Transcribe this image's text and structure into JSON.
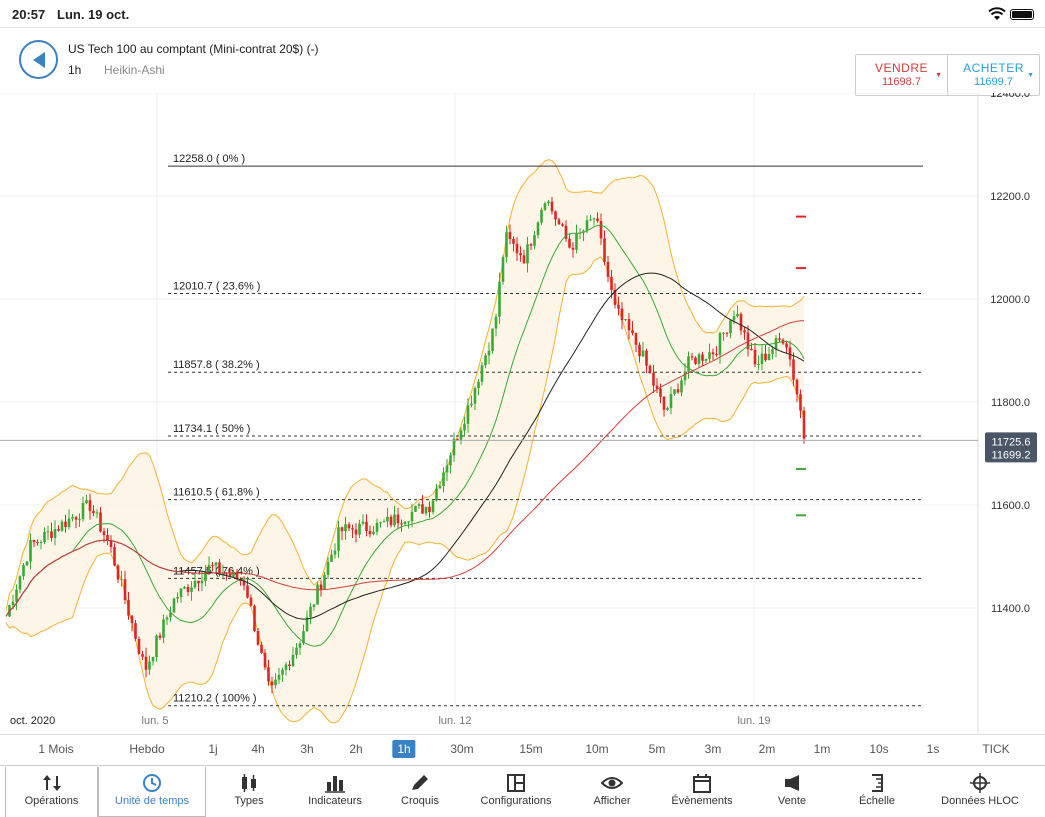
{
  "status": {
    "time": "20:57",
    "date": "Lun. 19 oct."
  },
  "header": {
    "instrument": "US Tech 100 au comptant (Mini-contrat 20$) (-)",
    "timeframe": "1h",
    "chart_type": "Heikin-Ashi",
    "sell": {
      "label": "VENDRE",
      "price": "11698.7"
    },
    "buy": {
      "label": "ACHETER",
      "price": "11699.7"
    }
  },
  "colors": {
    "accent": "#3a82c4",
    "sell": "#d23d3d",
    "buy": "#2a9fd8",
    "candle_up": "#3aaa35",
    "candle_down": "#e02525",
    "bollinger": "#f2b330",
    "ma_fast": "#3aaa35",
    "ma_slow": "#d23d3d",
    "ma_mid": "#222222"
  },
  "chart_data": {
    "type": "candlestick",
    "ylim": [
      11200,
      12400
    ],
    "y_ticks": [
      "12400.0",
      "12200.0",
      "12000.0",
      "11800.0",
      "11600.0",
      "11400.0"
    ],
    "x_labels": [
      "oct. 2020",
      "lun. 5",
      "lun. 12",
      "lun. 19"
    ],
    "fib_levels": [
      {
        "label": "12258.0 ( 0% )",
        "value": 12258.0
      },
      {
        "label": "12010.7 ( 23.6% )",
        "value": 12010.7
      },
      {
        "label": "11857.8 ( 38.2% )",
        "value": 11857.8
      },
      {
        "label": "11734.1 ( 50% )",
        "value": 11734.1
      },
      {
        "label": "11610.5 ( 61.8% )",
        "value": 11610.5
      },
      {
        "label": "11457.5 ( 76.4% )",
        "value": 11457.5
      },
      {
        "label": "11210.2 ( 100% )",
        "value": 11210.2
      }
    ],
    "price_tag": {
      "upper": "11725.6",
      "lower": "11699.2",
      "value": 11725.6
    },
    "key_points": [
      [
        0,
        11350
      ],
      [
        30,
        11520
      ],
      [
        90,
        11600
      ],
      [
        110,
        11520
      ],
      [
        145,
        11280
      ],
      [
        175,
        11420
      ],
      [
        210,
        11480
      ],
      [
        245,
        11450
      ],
      [
        270,
        11230
      ],
      [
        300,
        11340
      ],
      [
        340,
        11550
      ],
      [
        380,
        11560
      ],
      [
        430,
        11600
      ],
      [
        470,
        11800
      ],
      [
        495,
        11950
      ],
      [
        505,
        12120
      ],
      [
        525,
        12080
      ],
      [
        545,
        12200
      ],
      [
        570,
        12100
      ],
      [
        595,
        12160
      ],
      [
        615,
        11980
      ],
      [
        640,
        11900
      ],
      [
        665,
        11780
      ],
      [
        690,
        11880
      ],
      [
        715,
        11900
      ],
      [
        735,
        11980
      ],
      [
        755,
        11870
      ],
      [
        785,
        11930
      ],
      [
        800,
        11790
      ],
      [
        805,
        11720
      ]
    ]
  },
  "timeframes": [
    "1 Mois",
    "Hebdo",
    "1j",
    "4h",
    "3h",
    "2h",
    "1h",
    "30m",
    "15m",
    "10m",
    "5m",
    "3m",
    "2m",
    "1m",
    "10s",
    "1s",
    "TICK"
  ],
  "active_timeframe": "1h",
  "toolbar": [
    {
      "label": "Opérations",
      "icon": "sort-arrows-icon"
    },
    {
      "label": "Unité de temps",
      "icon": "clock-icon"
    },
    {
      "label": "Types",
      "icon": "candles-icon"
    },
    {
      "label": "Indicateurs",
      "icon": "bar-chart-icon"
    },
    {
      "label": "Croquis",
      "icon": "pencil-icon"
    },
    {
      "label": "Configurations",
      "icon": "layout-icon"
    },
    {
      "label": "Afficher",
      "icon": "eye-icon"
    },
    {
      "label": "Évènements",
      "icon": "calendar-icon"
    },
    {
      "label": "Vente",
      "icon": "megaphone-icon"
    },
    {
      "label": "Échelle",
      "icon": "scale-icon"
    },
    {
      "label": "Données HLOC",
      "icon": "crosshair-icon"
    }
  ]
}
